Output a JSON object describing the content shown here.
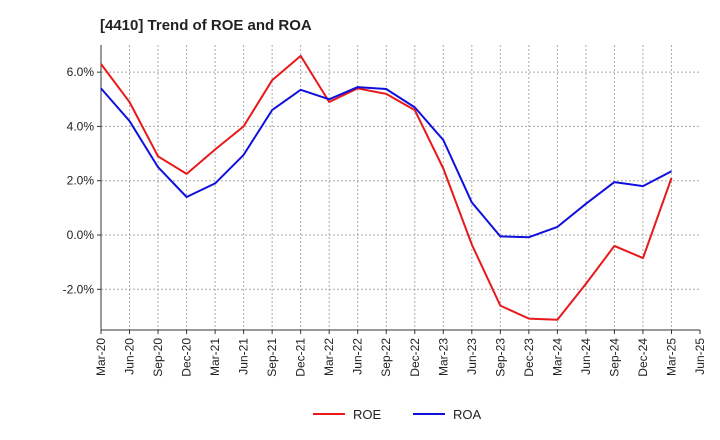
{
  "chart_data": {
    "type": "line",
    "title": "[4410]  Trend of ROE and ROA",
    "xlabel": "",
    "ylabel": "",
    "x": [
      "Mar-20",
      "Jun-20",
      "Sep-20",
      "Dec-20",
      "Mar-21",
      "Jun-21",
      "Sep-21",
      "Dec-21",
      "Mar-22",
      "Jun-22",
      "Sep-22",
      "Dec-22",
      "Mar-23",
      "Jun-23",
      "Sep-23",
      "Dec-23",
      "Mar-24",
      "Jun-24",
      "Sep-24",
      "Dec-24",
      "Mar-25",
      "Jun-25"
    ],
    "ylim": [
      -3.5,
      7.0
    ],
    "yticks": [
      -2.0,
      0.0,
      2.0,
      4.0,
      6.0
    ],
    "ytick_labels": [
      "-2.0%",
      "0.0%",
      "2.0%",
      "4.0%",
      "6.0%"
    ],
    "grid": true,
    "legend_position": "bottom-center",
    "series": [
      {
        "name": "ROE",
        "color": "#e8191b",
        "values": [
          6.3,
          4.9,
          2.9,
          2.25,
          3.15,
          4.0,
          5.7,
          6.6,
          4.9,
          5.4,
          5.2,
          4.6,
          2.45,
          -0.35,
          -2.6,
          -3.08,
          -3.12,
          -1.8,
          -0.4,
          -0.85,
          2.1,
          null
        ]
      },
      {
        "name": "ROA",
        "color": "#1010dd",
        "values": [
          5.4,
          4.2,
          2.5,
          1.4,
          1.9,
          2.95,
          4.6,
          5.35,
          5.0,
          5.45,
          5.38,
          4.7,
          3.5,
          1.2,
          -0.05,
          -0.08,
          0.3,
          1.15,
          1.95,
          1.8,
          2.35,
          null
        ]
      }
    ]
  }
}
